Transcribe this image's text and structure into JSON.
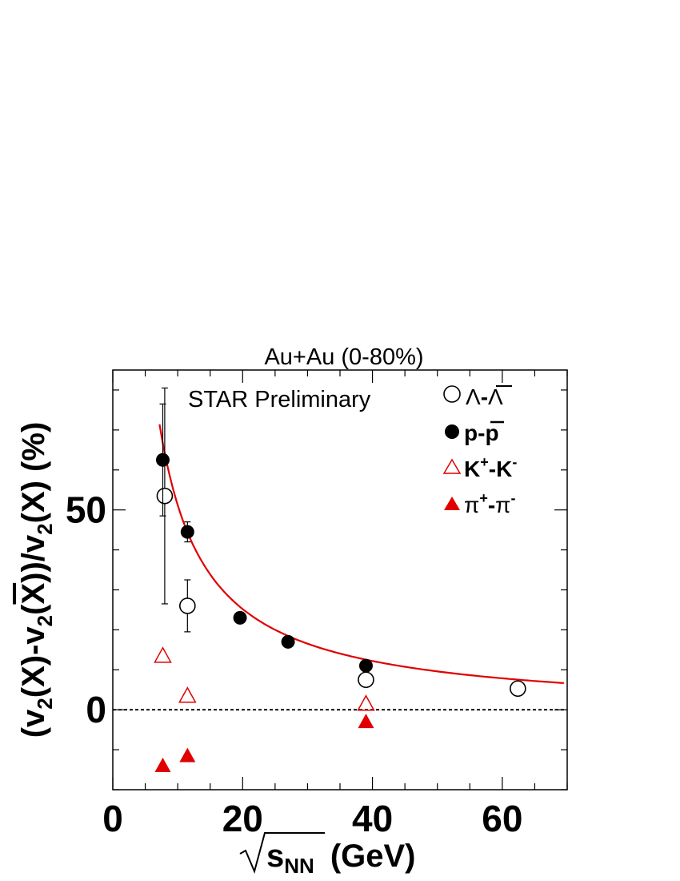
{
  "chart_data": {
    "type": "scatter",
    "title": "Au+Au (0-80%)",
    "annotation": "STAR Preliminary",
    "ylabel": {
      "p1": "(v",
      "s1": "2",
      "p2": "(X)-v",
      "s2": "2",
      "p3": "(",
      "bar": "X",
      "p4": "))/v",
      "s3": "2",
      "p5": "(X) (%)"
    },
    "xlabel": {
      "main": "s",
      "sub": "NN",
      "unit": "(GeV)"
    },
    "xlim": [
      0,
      70
    ],
    "ylim": [
      -20,
      85
    ],
    "xticks": [
      0,
      20,
      40,
      60
    ],
    "yticks": [
      0,
      50
    ],
    "grid": false,
    "legend_position": "top-right",
    "fit_curve": {
      "color": "#e00000",
      "x_range": [
        7.2,
        69.5
      ]
    },
    "series": [
      {
        "legend": {
          "a": "Λ",
          "sep": "-",
          "b": "Λ",
          "b_bar": true
        },
        "marker": "open-circle",
        "color": "#000000",
        "points": [
          {
            "x": 8.0,
            "y": 53.5,
            "err": 27.0
          },
          {
            "x": 11.5,
            "y": 26.0,
            "err": 6.5
          },
          {
            "x": 39.0,
            "y": 7.5,
            "err": 0
          },
          {
            "x": 62.4,
            "y": 5.3,
            "err": 0
          }
        ]
      },
      {
        "legend": {
          "a": "p",
          "sep": "-",
          "b": "p",
          "b_bar": true
        },
        "marker": "filled-circle",
        "color": "#000000",
        "points": [
          {
            "x": 7.7,
            "y": 62.5,
            "err": 14.0
          },
          {
            "x": 11.5,
            "y": 44.5,
            "err": 2.5
          },
          {
            "x": 19.6,
            "y": 23.0,
            "err": 0
          },
          {
            "x": 27.0,
            "y": 17.0,
            "err": 0
          },
          {
            "x": 39.0,
            "y": 11.0,
            "err": 0
          }
        ]
      },
      {
        "legend": {
          "a": "K",
          "a_sup": "+",
          "sep": "-",
          "b": "K",
          "b_sup": "-"
        },
        "marker": "open-triangle",
        "color": "#e00000",
        "points": [
          {
            "x": 7.7,
            "y": 13.5,
            "err": 0
          },
          {
            "x": 11.5,
            "y": 3.5,
            "err": 0
          },
          {
            "x": 39.0,
            "y": 1.5,
            "err": 0
          }
        ]
      },
      {
        "legend": {
          "a": "π",
          "a_sup": "+",
          "sep": "-",
          "b": "π",
          "b_sup": "-"
        },
        "marker": "filled-triangle",
        "color": "#e00000",
        "points": [
          {
            "x": 7.7,
            "y": -14.0,
            "err": 0
          },
          {
            "x": 11.5,
            "y": -11.5,
            "err": 0
          },
          {
            "x": 39.0,
            "y": -3.0,
            "err": 0
          }
        ]
      }
    ]
  }
}
